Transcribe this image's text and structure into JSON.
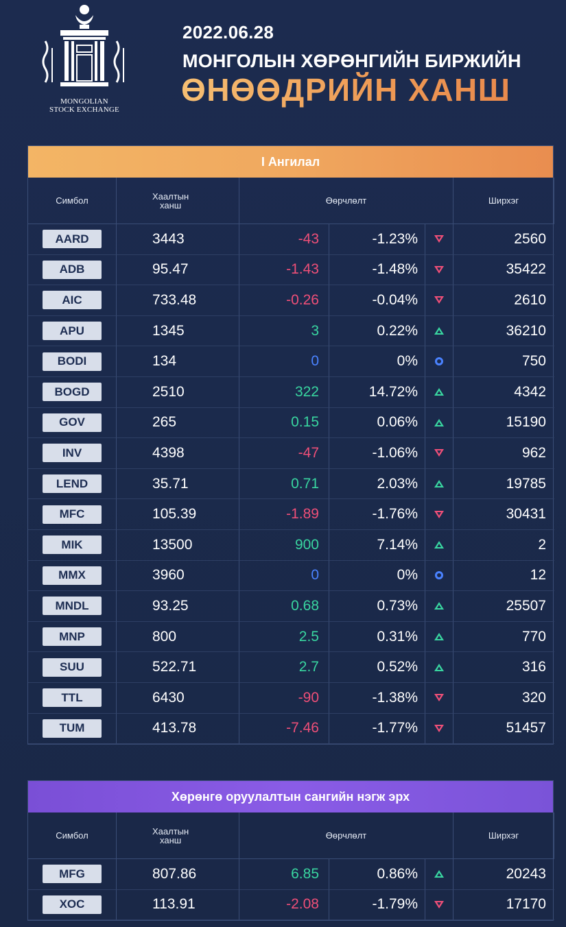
{
  "header": {
    "date": "2022.06.28",
    "subtitle": "МОНГОЛЫН ХӨРӨНГИЙН БИРЖИЙН",
    "title": "ӨНӨӨДРИЙН ХАНШ",
    "logo_line1": "MONGOLIAN",
    "logo_line2": "STOCK EXCHANGE",
    "logo_icon": "mse-logo-icon"
  },
  "columns": {
    "symbol": "Симбол",
    "price_line1": "Хаалтын",
    "price_line2": "ханш",
    "change": "Өөрчлөлт",
    "qty": "Ширхэг"
  },
  "colors": {
    "negative": "#ef4f78",
    "positive": "#39d6a0",
    "neutral": "#4a82ff",
    "orange_band": "#f0a85f",
    "purple_band": "#8a5ce6"
  },
  "tables": [
    {
      "category": "I Ангилал",
      "rows": [
        {
          "symbol": "AARD",
          "price": "3443",
          "diff": "-43",
          "pct": "-1.23%",
          "dir": "down",
          "qty": "2560"
        },
        {
          "symbol": "ADB",
          "price": "95.47",
          "diff": "-1.43",
          "pct": "-1.48%",
          "dir": "down",
          "qty": "35422"
        },
        {
          "symbol": "AIC",
          "price": "733.48",
          "diff": "-0.26",
          "pct": "-0.04%",
          "dir": "down",
          "qty": "2610"
        },
        {
          "symbol": "APU",
          "price": "1345",
          "diff": "3",
          "pct": "0.22%",
          "dir": "up",
          "qty": "36210"
        },
        {
          "symbol": "BODI",
          "price": "134",
          "diff": "0",
          "pct": "0%",
          "dir": "flat",
          "qty": "750"
        },
        {
          "symbol": "BOGD",
          "price": "2510",
          "diff": "322",
          "pct": "14.72%",
          "dir": "up",
          "qty": "4342"
        },
        {
          "symbol": "GOV",
          "price": "265",
          "diff": "0.15",
          "pct": "0.06%",
          "dir": "up",
          "qty": "15190"
        },
        {
          "symbol": "INV",
          "price": "4398",
          "diff": "-47",
          "pct": "-1.06%",
          "dir": "down",
          "qty": "962"
        },
        {
          "symbol": "LEND",
          "price": "35.71",
          "diff": "0.71",
          "pct": "2.03%",
          "dir": "up",
          "qty": "19785"
        },
        {
          "symbol": "MFC",
          "price": "105.39",
          "diff": "-1.89",
          "pct": "-1.76%",
          "dir": "down",
          "qty": "30431"
        },
        {
          "symbol": "MIK",
          "price": "13500",
          "diff": "900",
          "pct": "7.14%",
          "dir": "up",
          "qty": "2"
        },
        {
          "symbol": "MMX",
          "price": "3960",
          "diff": "0",
          "pct": "0%",
          "dir": "flat",
          "qty": "12"
        },
        {
          "symbol": "MNDL",
          "price": "93.25",
          "diff": "0.68",
          "pct": "0.73%",
          "dir": "up",
          "qty": "25507"
        },
        {
          "symbol": "MNP",
          "price": "800",
          "diff": "2.5",
          "pct": "0.31%",
          "dir": "up",
          "qty": "770"
        },
        {
          "symbol": "SUU",
          "price": "522.71",
          "diff": "2.7",
          "pct": "0.52%",
          "dir": "up",
          "qty": "316"
        },
        {
          "symbol": "TTL",
          "price": "6430",
          "diff": "-90",
          "pct": "-1.38%",
          "dir": "down",
          "qty": "320"
        },
        {
          "symbol": "TUM",
          "price": "413.78",
          "diff": "-7.46",
          "pct": "-1.77%",
          "dir": "down",
          "qty": "51457"
        }
      ]
    },
    {
      "category": "Хөрөнгө оруулалтын сангийн нэгж эрх",
      "rows": [
        {
          "symbol": "MFG",
          "price": "807.86",
          "diff": "6.85",
          "pct": "0.86%",
          "dir": "up",
          "qty": "20243"
        },
        {
          "symbol": "XOC",
          "price": "113.91",
          "diff": "-2.08",
          "pct": "-1.79%",
          "dir": "down",
          "qty": "17170"
        }
      ]
    }
  ]
}
